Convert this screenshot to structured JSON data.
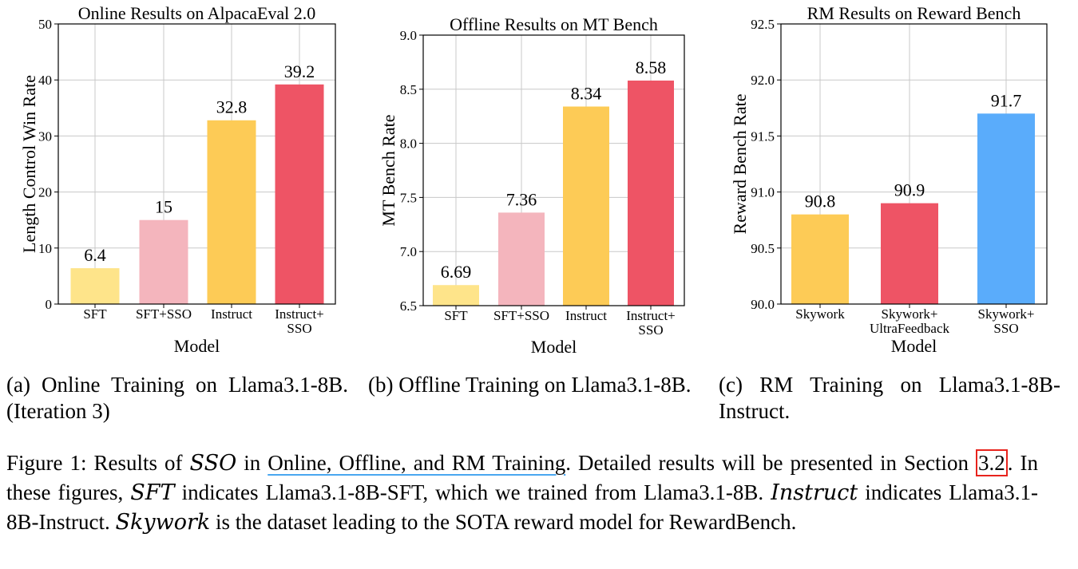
{
  "chart_data": [
    {
      "type": "bar",
      "title": "Online Results on AlpacaEval 2.0",
      "xlabel": "Model",
      "ylabel": "Length Control Win Rate",
      "categories": [
        [
          "SFT"
        ],
        [
          "SFT+SSO"
        ],
        [
          "Instruct"
        ],
        [
          "Instruct+",
          "SSO"
        ]
      ],
      "values": [
        6.4,
        15,
        32.8,
        39.2
      ],
      "value_labels": [
        "6.4",
        "15",
        "32.8",
        "39.2"
      ],
      "colors": [
        "#fee48a",
        "#f4b5bd",
        "#fdcb56",
        "#ee5465"
      ],
      "ylim": [
        0,
        50
      ],
      "yticks": [
        "0",
        "10",
        "20",
        "30",
        "40",
        "50"
      ],
      "grid": true
    },
    {
      "type": "bar",
      "title": "Offline Results on MT Bench",
      "xlabel": "Model",
      "ylabel": "MT Bench Rate",
      "categories": [
        [
          "SFT"
        ],
        [
          "SFT+SSO"
        ],
        [
          "Instruct"
        ],
        [
          "Instruct+",
          "SSO"
        ]
      ],
      "values": [
        6.69,
        7.36,
        8.34,
        8.58
      ],
      "value_labels": [
        "6.69",
        "7.36",
        "8.34",
        "8.58"
      ],
      "colors": [
        "#fee48a",
        "#f4b5bd",
        "#fdcb56",
        "#ee5465"
      ],
      "ylim": [
        6.5,
        9.0
      ],
      "yticks": [
        "6.5",
        "7.0",
        "7.5",
        "8.0",
        "8.5",
        "9.0"
      ],
      "grid": true
    },
    {
      "type": "bar",
      "title": "RM Results on Reward Bench",
      "xlabel": "Model",
      "ylabel": "Reward Bench Rate",
      "categories": [
        [
          "Skywork"
        ],
        [
          "Skywork+",
          "UltraFeedback"
        ],
        [
          "Skywork+",
          "SSO"
        ]
      ],
      "values": [
        90.8,
        90.9,
        91.7
      ],
      "value_labels": [
        "90.8",
        "90.9",
        "91.7"
      ],
      "colors": [
        "#fdcb56",
        "#ee5465",
        "#5aacfb"
      ],
      "ylim": [
        90.0,
        92.5
      ],
      "yticks": [
        "90.0",
        "90.5",
        "91.0",
        "91.5",
        "92.0",
        "92.5"
      ],
      "grid": true
    }
  ],
  "subcaptions": [
    "(a) Online Training on Llama3.1-8B. (Iteration 3)",
    "(b) Offline Training on Llama3.1-8B.",
    "(c) RM Training on Llama3.1-8B-Instruct."
  ],
  "caption": {
    "p1": "Figure 1: Results of ",
    "sso": "SSO",
    "p2": " in ",
    "link": "Online, Offline, and RM Training",
    "p3": ". Detailed results will be presented in Section ",
    "ref": "3.2",
    "p4": ". In these figures, ",
    "sft": "SFT",
    "p5": " indicates Llama3.1-8B-SFT, which we trained from Llama3.1-8B. ",
    "instruct": "Instruct",
    "p6": " indicates Llama3.1-8B-Instruct. ",
    "skywork": "Skywork",
    "p7": " is the dataset leading to the SOTA reward model for RewardBench."
  }
}
